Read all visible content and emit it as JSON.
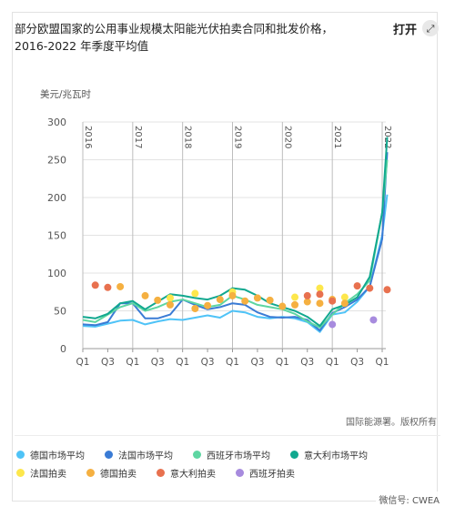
{
  "header": {
    "title": "部分欧盟国家的公用事业规模太阳能光伏拍卖合同和批发价格，2016-2022 年季度平均值",
    "open_label": "打开",
    "open_icon": "expand-arrows-icon"
  },
  "footer": {
    "source": "国际能源署。版权所有",
    "watermark": "微信号: CWEA"
  },
  "chart_data": {
    "type": "line",
    "ylabel": "美元/兆瓦时",
    "ylim": [
      0,
      300
    ],
    "yticks": [
      0,
      50,
      100,
      150,
      200,
      250,
      300
    ],
    "x_tick_labels": [
      "Q1",
      "Q3",
      "Q1",
      "Q3",
      "Q1",
      "Q3",
      "Q1",
      "Q3",
      "Q1",
      "Q3",
      "Q1",
      "Q3",
      "Q1"
    ],
    "year_labels": [
      "2016",
      "2017",
      "2018",
      "2019",
      "2020",
      "2021",
      "2022"
    ],
    "x_range": [
      0,
      24
    ],
    "grid": true,
    "legend_position": "bottom",
    "line_series": [
      {
        "name": "德国市场平均",
        "color": "#4fc3f7",
        "x": [
          0,
          1,
          2,
          3,
          4,
          5,
          6,
          7,
          8,
          9,
          10,
          11,
          12,
          13,
          14,
          15,
          16,
          17,
          18,
          19,
          20,
          21,
          22,
          23,
          24,
          24.4
        ],
        "y": [
          30,
          29,
          33,
          37,
          38,
          32,
          36,
          39,
          38,
          41,
          44,
          41,
          50,
          48,
          42,
          40,
          42,
          40,
          35,
          22,
          45,
          48,
          62,
          82,
          150,
          204
        ]
      },
      {
        "name": "法国市场平均",
        "color": "#3a7bd5",
        "x": [
          0,
          1,
          2,
          3,
          4,
          5,
          6,
          7,
          8,
          9,
          10,
          11,
          12,
          13,
          14,
          15,
          16,
          17,
          18,
          19,
          20,
          21,
          22,
          23,
          24,
          24.4
        ],
        "y": [
          32,
          31,
          35,
          60,
          60,
          40,
          40,
          45,
          65,
          58,
          52,
          55,
          60,
          58,
          48,
          42,
          41,
          42,
          38,
          24,
          47,
          55,
          65,
          82,
          145,
          260
        ]
      },
      {
        "name": "西班牙市场平均",
        "color": "#5ed6a2",
        "x": [
          0,
          1,
          2,
          3,
          4,
          5,
          6,
          7,
          8,
          9,
          10,
          11,
          12,
          13,
          14,
          15,
          16,
          17,
          18,
          19,
          20,
          21,
          22,
          23,
          24,
          24.4
        ],
        "y": [
          38,
          35,
          45,
          55,
          60,
          50,
          55,
          62,
          65,
          60,
          55,
          58,
          70,
          65,
          58,
          55,
          52,
          46,
          36,
          28,
          45,
          60,
          72,
          90,
          180,
          250
        ]
      },
      {
        "name": "意大利市场平均",
        "color": "#11a88f",
        "x": [
          0,
          1,
          2,
          3,
          4,
          5,
          6,
          7,
          8,
          9,
          10,
          11,
          12,
          13,
          14,
          15,
          16,
          17,
          18,
          19,
          20,
          21,
          22,
          23,
          24,
          24.4
        ],
        "y": [
          42,
          40,
          46,
          60,
          63,
          52,
          62,
          72,
          70,
          67,
          65,
          70,
          80,
          78,
          70,
          60,
          55,
          50,
          42,
          30,
          52,
          58,
          68,
          95,
          180,
          280
        ]
      }
    ],
    "scatter_series": [
      {
        "name": "法国拍卖",
        "color": "#fde74c",
        "x": [
          7,
          9,
          12,
          17,
          19,
          21
        ],
        "y": [
          67,
          73,
          75,
          68,
          80,
          68
        ]
      },
      {
        "name": "德国拍卖",
        "color": "#f5b041",
        "x": [
          3,
          5,
          6,
          7,
          9,
          10,
          11,
          12,
          13,
          14,
          15,
          16,
          17,
          18,
          19,
          20,
          21
        ],
        "y": [
          82,
          70,
          64,
          58,
          53,
          57,
          65,
          70,
          63,
          67,
          64,
          56,
          58,
          62,
          60,
          65,
          60
        ]
      },
      {
        "name": "意大利拍卖",
        "color": "#e8714f",
        "x": [
          1,
          2,
          18,
          19,
          20,
          22,
          23,
          24.4
        ],
        "y": [
          84,
          81,
          70,
          72,
          63,
          83,
          80,
          78
        ]
      },
      {
        "name": "西班牙拍卖",
        "color": "#a78bde",
        "x": [
          20,
          23.3
        ],
        "y": [
          32,
          38
        ]
      }
    ]
  }
}
